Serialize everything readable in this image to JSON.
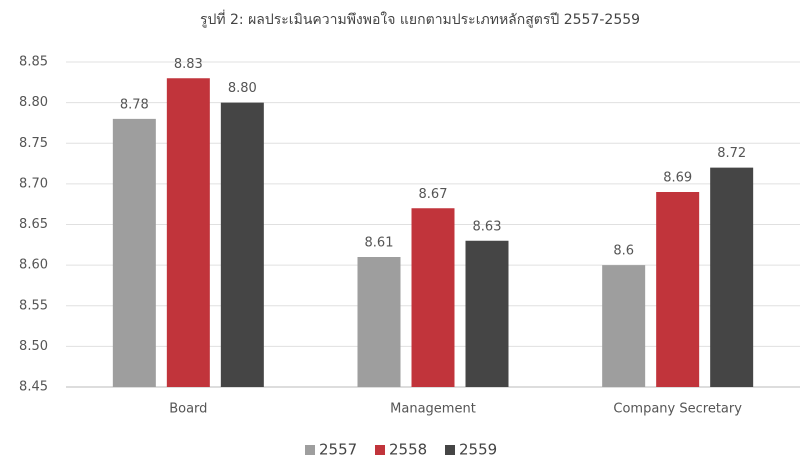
{
  "chart_data": {
    "type": "bar",
    "title": "รูปที่ 2: ผลประเมินความพึงพอใจ แยกตามประเภทหลักสูตรปี 2557-2559",
    "categories": [
      "Board",
      "Management",
      "Company Secretary"
    ],
    "series": [
      {
        "name": "2557",
        "color": "#9e9e9e",
        "values": [
          8.78,
          8.61,
          8.6
        ],
        "value_labels": [
          "8.78",
          "8.61",
          "8.6"
        ]
      },
      {
        "name": "2558",
        "color": "#c1343b",
        "values": [
          8.83,
          8.67,
          8.69
        ],
        "value_labels": [
          "8.83",
          "8.67",
          "8.69"
        ]
      },
      {
        "name": "2559",
        "color": "#454545",
        "values": [
          8.8,
          8.63,
          8.72
        ],
        "value_labels": [
          "8.80",
          "8.63",
          "8.72"
        ]
      }
    ],
    "ylim": [
      8.45,
      8.85
    ],
    "yticks": [
      8.45,
      {
        "value": 8.5,
        "label": "8.50"
      },
      8.55,
      {
        "value": 8.6,
        "label": "8.60"
      },
      8.65,
      {
        "value": 8.7,
        "label": "8.70"
      },
      8.75,
      {
        "value": 8.8,
        "label": "8.80"
      },
      8.85
    ],
    "grid": true,
    "legend": "bottom"
  }
}
